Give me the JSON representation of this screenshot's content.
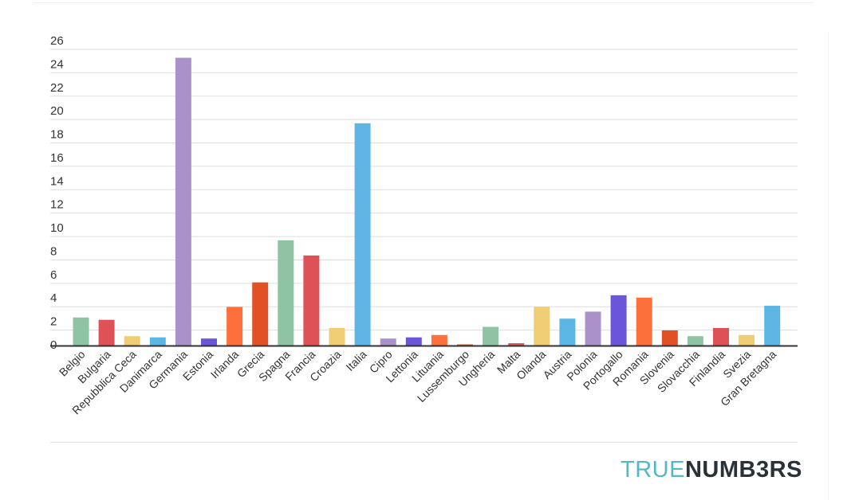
{
  "chart_data": {
    "type": "bar",
    "title": "",
    "xlabel": "",
    "ylabel": "",
    "ylim": [
      0,
      26
    ],
    "yticks": [
      0,
      2,
      4,
      6,
      8,
      10,
      12,
      14,
      16,
      18,
      20,
      22,
      24,
      26
    ],
    "grid": true,
    "categories": [
      "Belgio",
      "Bulgaria",
      "Repubblica Ceca",
      "Danimarca",
      "Germania",
      "Estonia",
      "Irlanda",
      "Grecia",
      "Spagna",
      "Francia",
      "Croazia",
      "Italia",
      "Cipro",
      "Lettonia",
      "Lituania",
      "Lussemburgo",
      "Ungheria",
      "Malta",
      "Olanda",
      "Austria",
      "Polonia",
      "Portogallo",
      "Romania",
      "Slovenia",
      "Slovacchia",
      "Finlandia",
      "Svezia",
      "Gran Bretagna"
    ],
    "values": [
      2.4,
      2.2,
      0.8,
      0.7,
      24.6,
      0.6,
      3.3,
      5.4,
      9.0,
      7.7,
      1.5,
      19.0,
      0.6,
      0.7,
      0.9,
      0.1,
      1.6,
      0.2,
      3.3,
      2.3,
      2.9,
      4.3,
      4.1,
      1.3,
      0.8,
      1.5,
      0.9,
      3.4
    ],
    "colors": [
      "#8fc3a2",
      "#dd5157",
      "#eecd74",
      "#5db5e4",
      "#ab91c9",
      "#6b56da",
      "#fd6f3b",
      "#e15125",
      "#8fc3a2",
      "#dd5157",
      "#eecd74",
      "#5db5e4",
      "#ab91c9",
      "#6b56da",
      "#fd6f3b",
      "#e15125",
      "#8fc3a2",
      "#dd5157",
      "#eecd74",
      "#5db5e4",
      "#ab91c9",
      "#6b56da",
      "#fd6f3b",
      "#e15125",
      "#8fc3a2",
      "#dd5157",
      "#eecd74",
      "#5db5e4"
    ]
  },
  "branding": {
    "logo_part1": "TRUE",
    "logo_part2": "NUMB3RS"
  }
}
